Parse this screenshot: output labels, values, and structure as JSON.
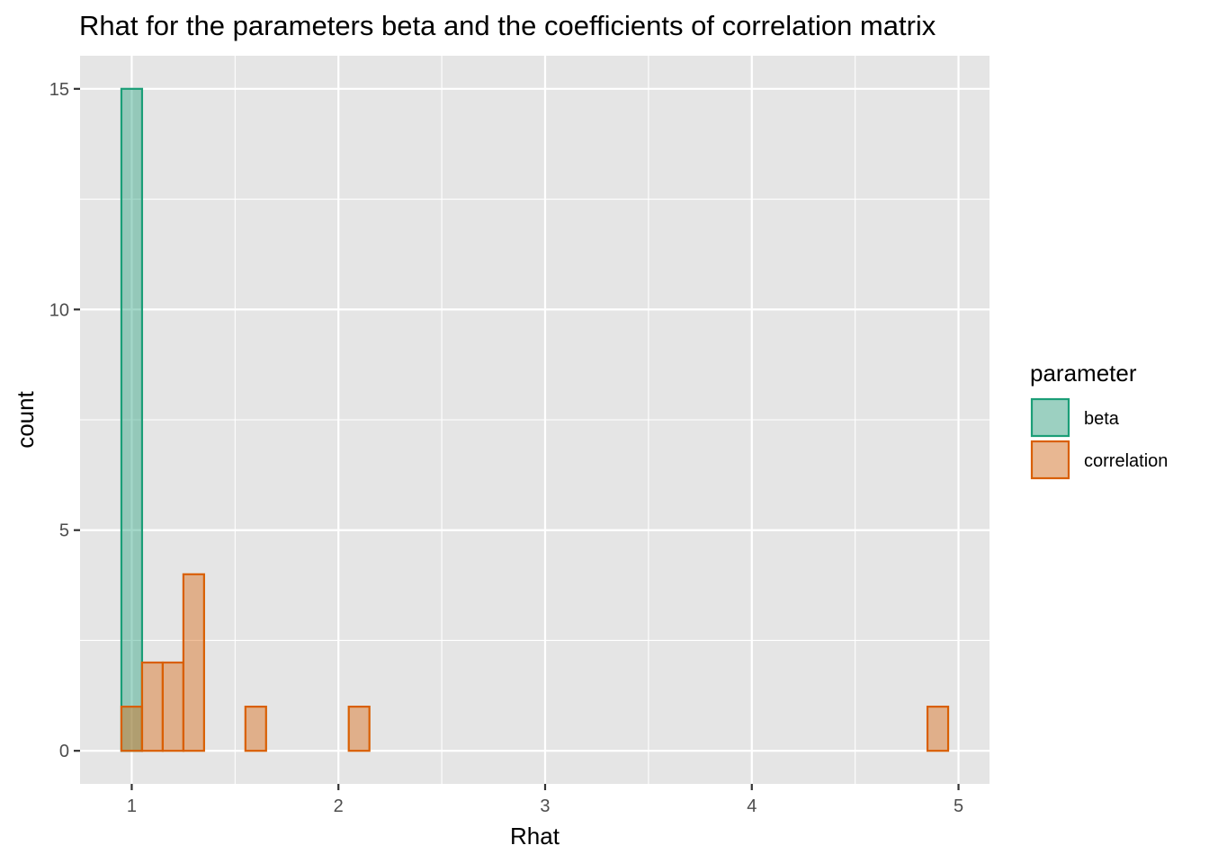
{
  "chart_data": {
    "type": "bar",
    "title": "Rhat for the parameters beta and the coefficients of correlation matrix",
    "xlabel": "Rhat",
    "ylabel": "count",
    "xlim": [
      0.75,
      5.15
    ],
    "ylim": [
      -0.75,
      15.75
    ],
    "x_ticks": [
      1,
      2,
      3,
      4,
      5
    ],
    "y_ticks": [
      0,
      5,
      10,
      15
    ],
    "grid": true,
    "bin_width": 0.1,
    "bin_centers": [
      1.0,
      1.1,
      1.2,
      1.3,
      1.4,
      1.5,
      1.6,
      1.7,
      1.8,
      1.9,
      2.0,
      2.1,
      2.2,
      2.3,
      2.4,
      2.5,
      2.6,
      2.7,
      2.8,
      2.9,
      3.0,
      3.1,
      3.2,
      3.3,
      3.4,
      3.5,
      3.6,
      3.7,
      3.8,
      3.9,
      4.0,
      4.1,
      4.2,
      4.3,
      4.4,
      4.5,
      4.6,
      4.7,
      4.8,
      4.9
    ],
    "series": [
      {
        "name": "beta",
        "fill": "#1b9e77",
        "fill_opacity": 0.4,
        "stroke": "#1b9e77",
        "values": [
          15,
          0,
          0,
          0,
          0,
          0,
          0,
          0,
          0,
          0,
          0,
          0,
          0,
          0,
          0,
          0,
          0,
          0,
          0,
          0,
          0,
          0,
          0,
          0,
          0,
          0,
          0,
          0,
          0,
          0,
          0,
          0,
          0,
          0,
          0,
          0,
          0,
          0,
          0,
          0
        ]
      },
      {
        "name": "correlation",
        "fill": "#d95f02",
        "fill_opacity": 0.4,
        "stroke": "#d95f02",
        "values": [
          1,
          2,
          2,
          4,
          0,
          0,
          1,
          0,
          0,
          0,
          0,
          1,
          0,
          0,
          0,
          0,
          0,
          0,
          0,
          0,
          0,
          0,
          0,
          0,
          0,
          0,
          0,
          0,
          0,
          0,
          0,
          0,
          0,
          0,
          0,
          0,
          0,
          0,
          0,
          1
        ]
      }
    ],
    "legend": {
      "title": "parameter",
      "position": "right",
      "items": [
        "beta",
        "correlation"
      ]
    },
    "colors": {
      "panel_background": "#e5e5e5",
      "grid_line": "#ffffff"
    }
  }
}
